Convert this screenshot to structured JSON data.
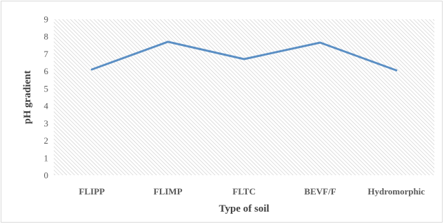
{
  "chart_data": {
    "type": "line",
    "title": "",
    "xlabel": "Type of soil",
    "ylabel": "pH gradient",
    "categories": [
      "FLIPP",
      "FLIMP",
      "FLTC",
      "BEVF/F",
      "Hydromorphic"
    ],
    "series": [
      {
        "values": [
          6.1,
          7.7,
          6.7,
          7.65,
          6.05
        ],
        "color": "#5b8fc4"
      }
    ],
    "ylim": [
      0,
      9
    ],
    "yticks": [
      "0",
      "1",
      "2",
      "3",
      "4",
      "5",
      "6",
      "7",
      "8",
      "9"
    ],
    "grid": false,
    "legend": "none",
    "plot_background": "hatched light gray",
    "hatch_color": "#c8c8c8"
  }
}
